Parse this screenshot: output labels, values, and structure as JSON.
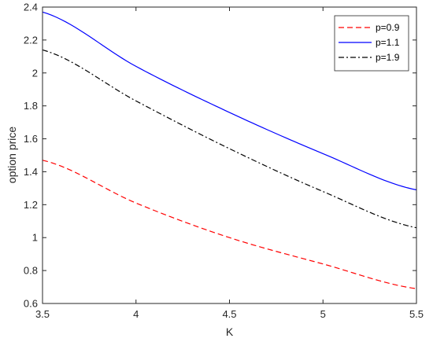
{
  "chart_data": {
    "type": "line",
    "title": "",
    "xlabel": "K",
    "ylabel": "option price",
    "xlim": [
      3.5,
      5.5
    ],
    "ylim": [
      0.6,
      2.4
    ],
    "xticks": [
      3.5,
      4,
      4.5,
      5,
      5.5
    ],
    "xtick_labels": [
      "3.5",
      "4",
      "4.5",
      "5",
      "5.5"
    ],
    "yticks": [
      0.6,
      0.8,
      1,
      1.2,
      1.4,
      1.6,
      1.8,
      2,
      2.2,
      2.4
    ],
    "ytick_labels": [
      "0.6",
      "0.8",
      "1",
      "1.2",
      "1.4",
      "1.6",
      "1.8",
      "2",
      "2.2",
      "2.4"
    ],
    "grid": false,
    "legend_position": "top-right",
    "x": [
      3.5,
      4.0,
      4.5,
      5.0,
      5.5
    ],
    "series": [
      {
        "name": "p=0.9",
        "color": "#ff0000",
        "dash": "dashed",
        "values": [
          1.47,
          1.21,
          1.0,
          0.84,
          0.69
        ]
      },
      {
        "name": "p=1.1",
        "color": "#0000ff",
        "dash": "solid",
        "values": [
          2.37,
          2.04,
          1.76,
          1.51,
          1.29
        ]
      },
      {
        "name": "p=1.9",
        "color": "#000000",
        "dash": "dashdot",
        "values": [
          2.14,
          1.83,
          1.54,
          1.28,
          1.06
        ]
      }
    ]
  }
}
